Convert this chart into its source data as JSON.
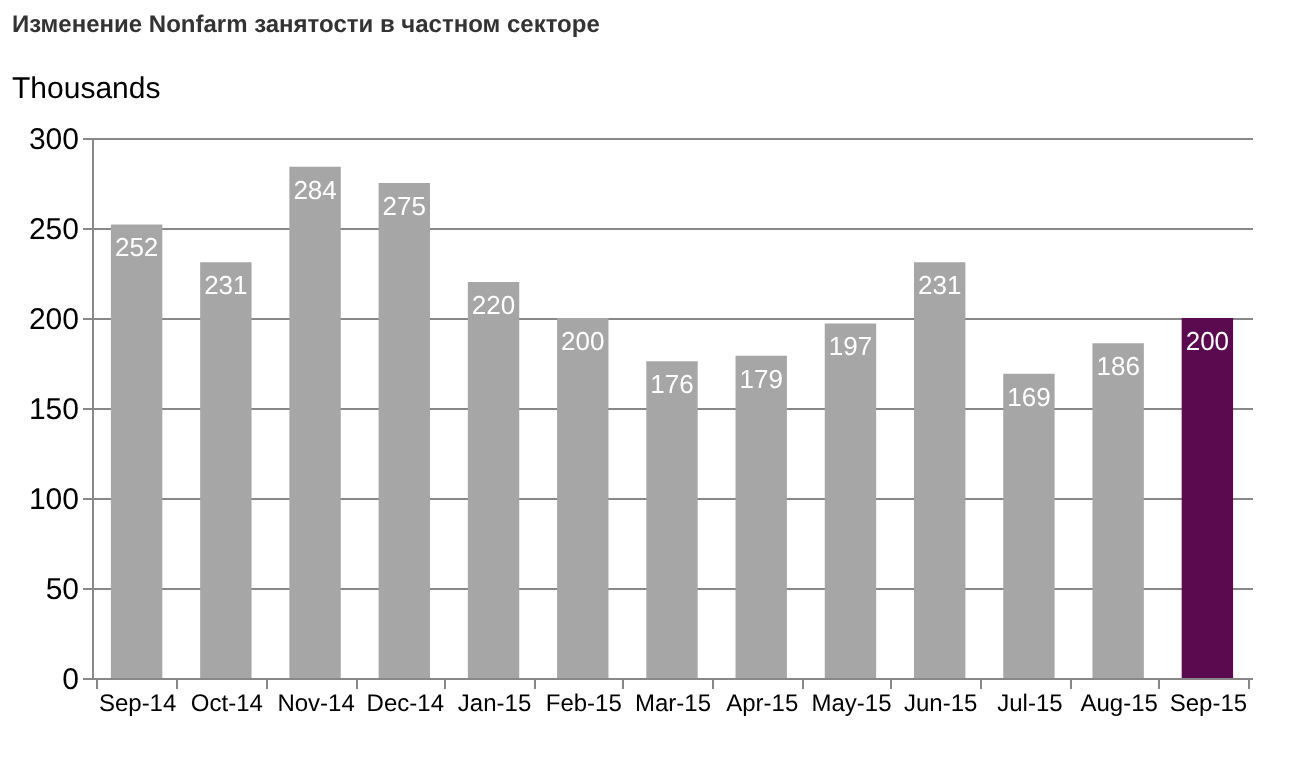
{
  "chart_data": {
    "type": "bar",
    "title": "Изменение Nonfarm занятости в частном секторе",
    "ylabel": "Thousands",
    "categories": [
      "Sep-14",
      "Oct-14",
      "Nov-14",
      "Dec-14",
      "Jan-15",
      "Feb-15",
      "Mar-15",
      "Apr-15",
      "May-15",
      "Jun-15",
      "Jul-15",
      "Aug-15",
      "Sep-15"
    ],
    "values": [
      252,
      231,
      284,
      275,
      220,
      200,
      176,
      179,
      197,
      231,
      169,
      186,
      200
    ],
    "colors": [
      "#a6a6a6",
      "#a6a6a6",
      "#a6a6a6",
      "#a6a6a6",
      "#a6a6a6",
      "#a6a6a6",
      "#a6a6a6",
      "#a6a6a6",
      "#a6a6a6",
      "#a6a6a6",
      "#a6a6a6",
      "#a6a6a6",
      "#5c0a50"
    ],
    "ylim": [
      0,
      300
    ],
    "yticks": [
      0,
      50,
      100,
      150,
      200,
      250,
      300
    ],
    "grid": "y",
    "data_labels": true
  }
}
